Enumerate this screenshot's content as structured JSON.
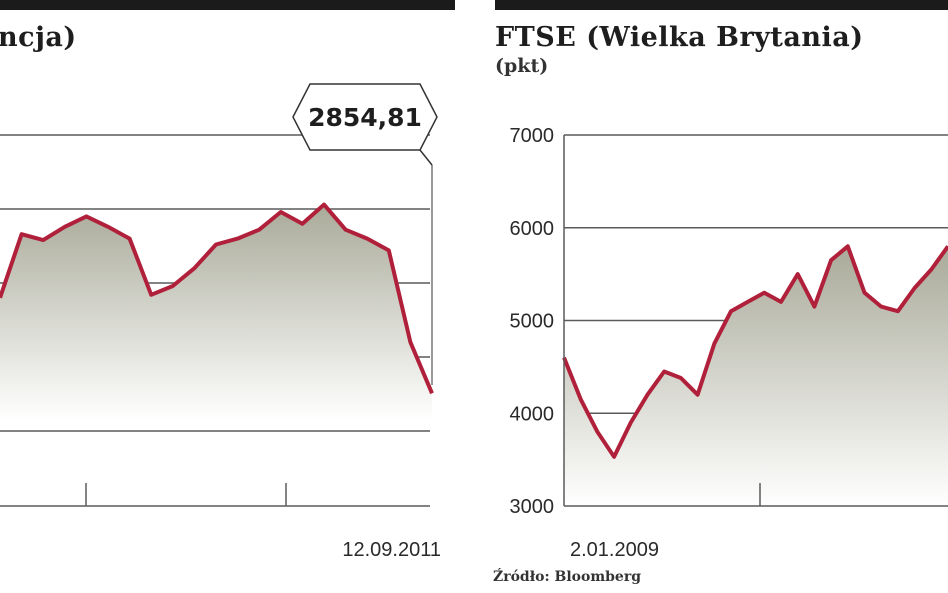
{
  "left_panel": {
    "title": "ncja)",
    "end_date_label": "12.09.2011",
    "callout": "2854,81"
  },
  "right_panel": {
    "title": "FTSE (Wielka Brytania)",
    "unit": "(pkt)",
    "start_date_label": "2.01.2009"
  },
  "source": "Źródło: Bloomberg",
  "colors": {
    "line": "#b0203a",
    "area_top": "#a9aa99",
    "area_bottom": "#ffffff",
    "grid": "#5a5a5a",
    "bar": "#1b1b1b"
  },
  "chart_data": [
    {
      "type": "area",
      "x_range": [
        "2009-01-02",
        "2011-09-12"
      ],
      "y_ticks": [],
      "callout_value": 2854.81,
      "x": [
        "2010-01",
        "2010-02",
        "2010-03",
        "2010-04",
        "2010-05",
        "2010-06",
        "2010-07",
        "2010-08",
        "2010-09",
        "2010-10",
        "2010-11",
        "2010-12",
        "2011-01",
        "2011-02",
        "2011-03",
        "2011-04",
        "2011-05",
        "2011-06",
        "2011-07",
        "2011-08",
        "2011-09"
      ],
      "series": [
        {
          "values": [
            3500,
            3930,
            3890,
            3980,
            4050,
            3980,
            3900,
            3520,
            3580,
            3700,
            3860,
            3900,
            3960,
            4080,
            4000,
            4130,
            3960,
            3900,
            3820,
            3200,
            2854.81
          ]
        }
      ]
    },
    {
      "type": "area",
      "x_range": [
        "2009-01-02",
        "2011-09-12"
      ],
      "ylim": [
        3000,
        7000
      ],
      "y_ticks": [
        3000,
        4000,
        5000,
        6000,
        7000
      ],
      "x": [
        "2009-01",
        "2009-02",
        "2009-03",
        "2009-04",
        "2009-05",
        "2009-06",
        "2009-07",
        "2009-08",
        "2009-09",
        "2009-10",
        "2009-11",
        "2009-12",
        "2010-01",
        "2010-02",
        "2010-03",
        "2010-04",
        "2010-05",
        "2010-06",
        "2010-07",
        "2010-08",
        "2010-09",
        "2010-10",
        "2010-11",
        "2010-12"
      ],
      "series": [
        {
          "values": [
            4600,
            4150,
            3800,
            3530,
            3900,
            4200,
            4450,
            4380,
            4200,
            4750,
            5100,
            5200,
            5300,
            5200,
            5500,
            5150,
            5650,
            5800,
            5300,
            5150,
            5100,
            5350,
            5550,
            5800
          ]
        }
      ]
    }
  ]
}
